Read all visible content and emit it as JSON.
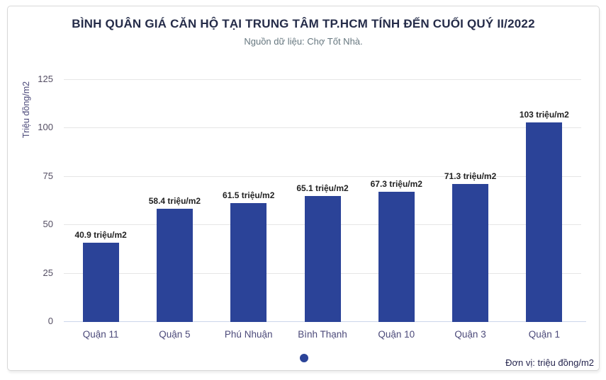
{
  "chart_data": {
    "type": "bar",
    "title": "BÌNH QUÂN GIÁ CĂN HỘ TẠI TRUNG TÂM TP.HCM TÍNH ĐẾN CUỐI QUÝ II/2022",
    "subtitle": "Nguồn dữ liệu: Chợ Tốt Nhà.",
    "ylabel": "Triệu đồng/m2",
    "xlabel": "",
    "categories": [
      "Quận 11",
      "Quận 5",
      "Phú Nhuận",
      "Bình Thạnh",
      "Quận 10",
      "Quận 3",
      "Quận 1"
    ],
    "values": [
      40.9,
      58.4,
      61.5,
      65.1,
      67.3,
      71.3,
      103
    ],
    "data_labels": [
      "40.9 triệu/m2",
      "58.4 triệu/m2",
      "61.5 triệu/m2",
      "65.1 triệu/m2",
      "67.3 triệu/m2",
      "71.3 triệu/m2",
      "103 triệu/m2"
    ],
    "yticks": [
      0,
      25,
      50,
      75,
      100,
      125
    ],
    "ylim": [
      0,
      125
    ],
    "grid": true,
    "legend": {
      "symbol": "circle-marker",
      "label": "",
      "position": "bottom-center"
    },
    "unit_note": "Đơn vị: triệu đồng/m2",
    "colors": {
      "bar": "#2b4398",
      "title": "#252c49",
      "subtitle": "#66777f",
      "axis_title": "#4c4a7a",
      "y_tick_label": "#544e63",
      "x_tick_label": "#4c4a7a",
      "data_label": "#222222",
      "gridline": "#e6e6e6",
      "axis_line": "#ccd6eb",
      "unit_note": "#26264f",
      "card_border": "#d8d8d8"
    }
  }
}
